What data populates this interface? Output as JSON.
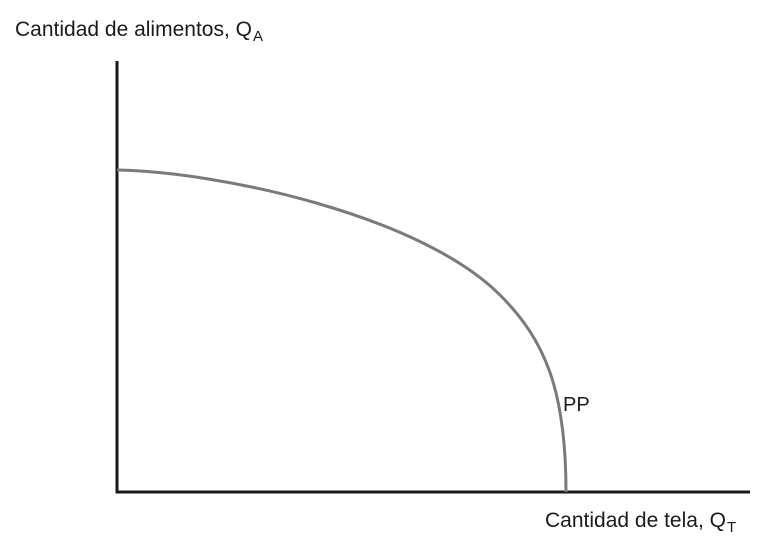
{
  "y_axis": {
    "label": "Cantidad de alimentos, Q",
    "subscript": "A"
  },
  "x_axis": {
    "label": "Cantidad de tela, Q",
    "subscript": "T"
  },
  "curve": {
    "label": "PP",
    "color": "#7a7a7a"
  },
  "axis_color": "#1a1a1a"
}
